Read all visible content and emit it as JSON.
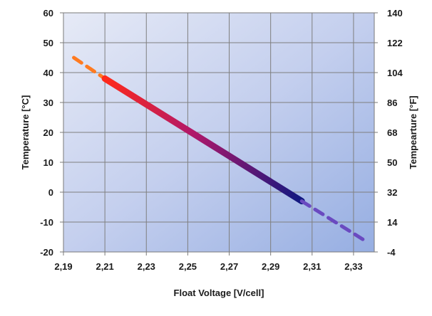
{
  "chart_data": {
    "type": "line",
    "title": "",
    "xlabel": "Float Voltage [V/cell]",
    "ylabel": "Temperature [°C]",
    "y2label": "Tempearture [°F]",
    "xlim": [
      2.19,
      2.34
    ],
    "ylim": [
      -20,
      60
    ],
    "y2lim": [
      -4,
      140
    ],
    "x_ticks": [
      "2,19",
      "2,21",
      "2,23",
      "2,25",
      "2,27",
      "2,29",
      "2,31",
      "2,33"
    ],
    "x_tick_values": [
      2.19,
      2.21,
      2.23,
      2.25,
      2.27,
      2.29,
      2.31,
      2.33
    ],
    "y_ticks": [
      "-20",
      "-10",
      "0",
      "10",
      "20",
      "30",
      "40",
      "50",
      "60"
    ],
    "y_tick_values": [
      -20,
      -10,
      0,
      10,
      20,
      30,
      40,
      50,
      60
    ],
    "y2_ticks": [
      "-4",
      "14",
      "32",
      "50",
      "68",
      "86",
      "104",
      "122",
      "140"
    ],
    "grid": true,
    "series": [
      {
        "style": "dashed",
        "color": "#ff7a20",
        "x": [
          2.195,
          2.21
        ],
        "y": [
          45,
          38
        ]
      },
      {
        "style": "solid",
        "color_start": "#ff2a1a",
        "color_end": "#101880",
        "x": [
          2.21,
          2.305
        ],
        "y": [
          38,
          -3
        ]
      },
      {
        "style": "dashed",
        "color": "#6a4ac0",
        "x": [
          2.305,
          2.335
        ],
        "y": [
          -3,
          -16
        ]
      }
    ]
  }
}
